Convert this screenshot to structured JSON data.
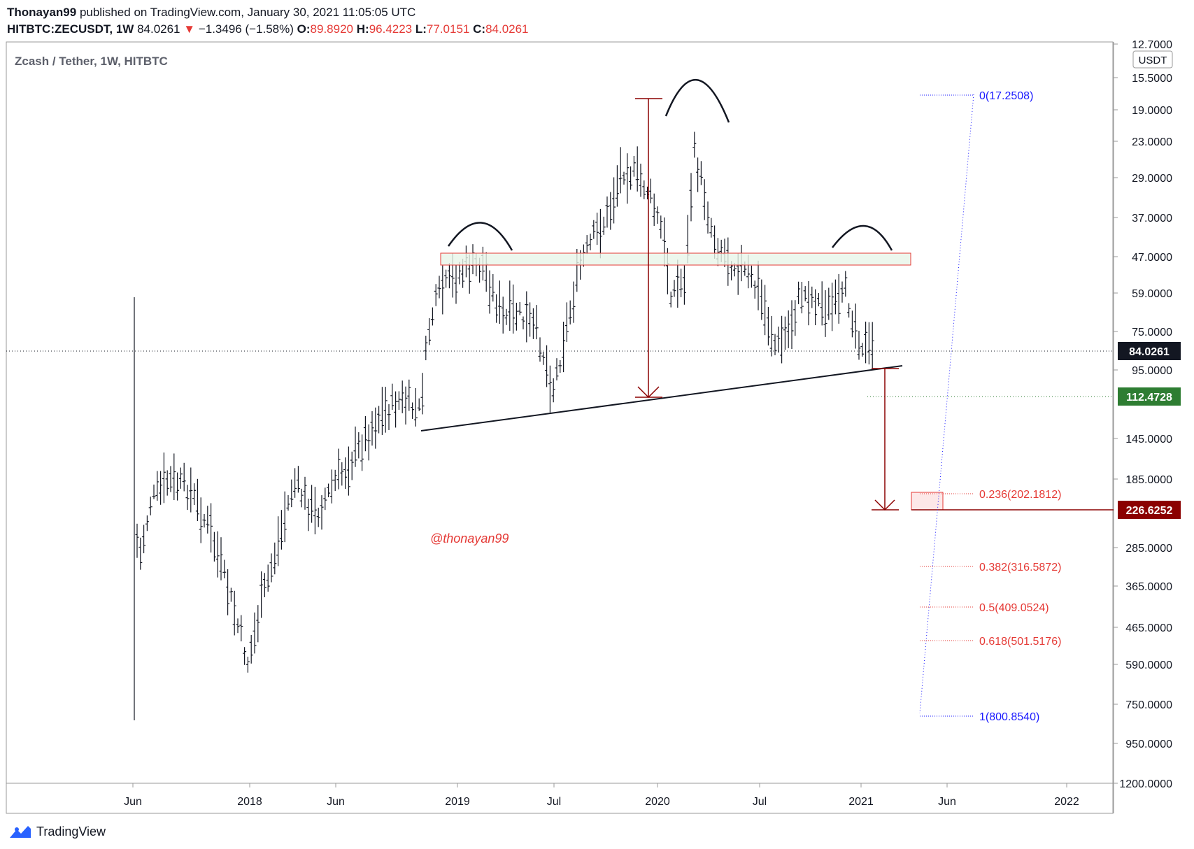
{
  "header": {
    "author": "Thonayan99",
    "published": "published on TradingView.com, January 30, 2021 11:05:05 UTC",
    "symbol": "HITBTC:ZECUSDT, 1W",
    "last": "84.0261",
    "change_arrow": "▼",
    "change": "−1.3496 (−1.58%)",
    "o_label": "O:",
    "o": "89.8920",
    "h_label": "H:",
    "h": "96.4223",
    "l_label": "L:",
    "l": "77.0151",
    "c_label": "C:",
    "c": "84.0261"
  },
  "footer": {
    "brand": "TradingView",
    "logo_icon": "tradingview-logo-icon"
  },
  "colors": {
    "up_down_bars": "#131722",
    "accent_red": "#e53935",
    "dark_red": "#8b0000",
    "fib_blue": "#1a1aff",
    "green": "#2e7d32"
  },
  "chart_data": {
    "type": "ohlc",
    "title": "Zcash / Tether, 1W, HITBTC",
    "price_axis_unit": "USDT",
    "y_scale": "inverted log",
    "y_ticks": [
      "12.7000",
      "15.5000",
      "19.0000",
      "23.0000",
      "29.0000",
      "37.0000",
      "47.0000",
      "59.0000",
      "75.0000",
      "95.0000",
      "145.0000",
      "185.0000",
      "285.0000",
      "365.0000",
      "465.0000",
      "590.0000",
      "750.0000",
      "950.0000",
      "1200.0000"
    ],
    "x_ticks": [
      "Jun",
      "2018",
      "Jun",
      "2019",
      "Jul",
      "2020",
      "Jul",
      "2021",
      "Jun",
      "2022"
    ],
    "price_labels": [
      {
        "value": "84.0261",
        "style": "black"
      },
      {
        "value": "112.4728",
        "style": "green"
      },
      {
        "value": "226.6252",
        "style": "darkred"
      }
    ],
    "fib_levels": [
      {
        "label": "0(17.2508)",
        "color": "blue"
      },
      {
        "label": "0.236(202.1812)",
        "color": "red"
      },
      {
        "label": "0.382(316.5872)",
        "color": "red"
      },
      {
        "label": "0.5(409.0524)",
        "color": "red"
      },
      {
        "label": "0.618(501.5176)",
        "color": "red"
      },
      {
        "label": "1(800.8540)",
        "color": "blue"
      }
    ],
    "watermark_text": "@thonayan99",
    "annotations": [
      "head and shoulders arcs",
      "neckline trendline",
      "resistance zone",
      "measured move arrows"
    ]
  }
}
